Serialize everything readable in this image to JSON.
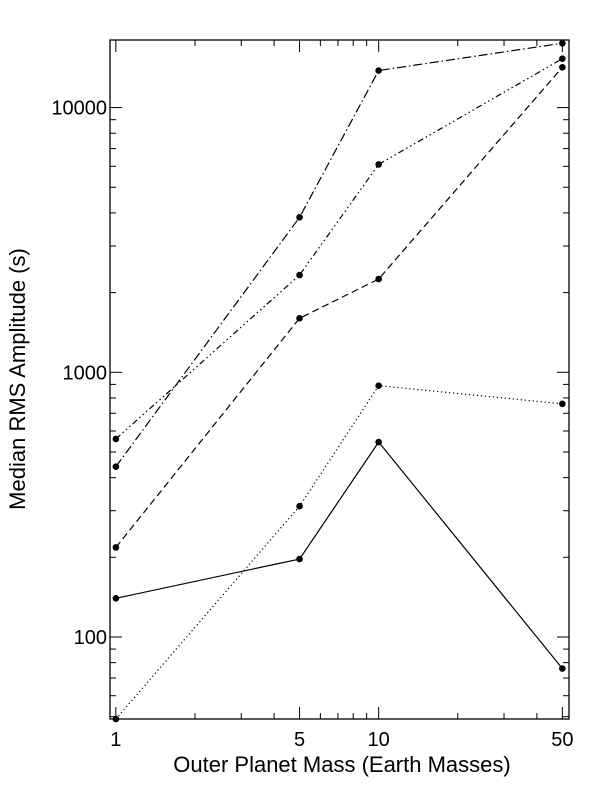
{
  "chart_data": {
    "type": "line",
    "title": "",
    "xlabel": "Outer Planet Mass (Earth Masses)",
    "ylabel": "Median RMS Amplitude (s)",
    "xscale": "log",
    "yscale": "log",
    "xlim": [
      0.95,
      53
    ],
    "ylim": [
      49,
      18000
    ],
    "xticks": [
      1,
      5,
      10,
      50
    ],
    "xtick_labels": [
      "1",
      "5",
      "10",
      "50"
    ],
    "yticks": [
      100,
      1000,
      10000
    ],
    "ytick_labels": [
      "100",
      "1000",
      "10000"
    ],
    "x": [
      1,
      5,
      10,
      50
    ],
    "grid": false,
    "legend": "none",
    "series": [
      {
        "line_style": "solid",
        "color": "#000000",
        "values": [
          140,
          197,
          545,
          76
        ]
      },
      {
        "line_style": "dotted",
        "color": "#000000",
        "values": [
          49,
          312,
          890,
          760
        ]
      },
      {
        "line_style": "dashed",
        "color": "#000000",
        "values": [
          218,
          1600,
          2250,
          14200
        ]
      },
      {
        "line_style": "dash-dot",
        "color": "#000000",
        "values": [
          440,
          3850,
          13800,
          17500
        ]
      },
      {
        "line_style": "dash-dot-dot-dot",
        "color": "#000000",
        "values": [
          560,
          2330,
          6100,
          15300
        ]
      }
    ]
  }
}
